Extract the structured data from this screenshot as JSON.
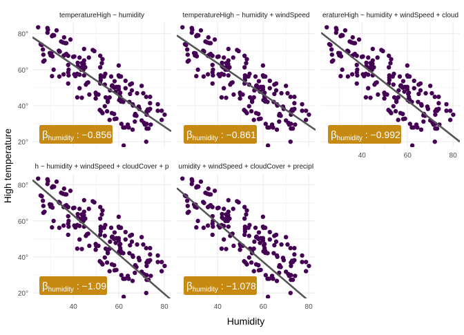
{
  "chart_data": {
    "type": "scatter",
    "layout": "facet grid, 2 rows x 3 columns, 5 panels",
    "xlabel": "Humidity",
    "ylabel": "High temperature",
    "xlim": [
      22,
      83
    ],
    "ylim": [
      17,
      86
    ],
    "x_ticks": [
      "40",
      "60",
      "80"
    ],
    "x_tick_values": [
      40,
      60,
      80
    ],
    "y_ticks": [
      "20°",
      "40°",
      "60°",
      "80°"
    ],
    "y_tick_values": [
      20,
      40,
      60,
      80
    ],
    "grid": true,
    "colors": {
      "points": "#440154",
      "fit_line": "#555555",
      "label_bg": "#C68A12",
      "label_text": "#ffffff",
      "grid": "#ebebeb"
    },
    "label_symbol": "β",
    "label_subscript": "humidity",
    "panels": [
      {
        "title": "temperatureHigh ~ humidity",
        "coef_text": ": −0.856",
        "slope": -0.856,
        "line": [
          [
            22,
            78.0
          ],
          [
            83,
            25.8
          ]
        ]
      },
      {
        "title": "temperatureHigh ~ humidity + windSpeed",
        "coef_text": ": −0.861",
        "slope": -0.861,
        "line": [
          [
            22,
            79.0
          ],
          [
            83,
            26.5
          ]
        ]
      },
      {
        "title": "eratureHigh ~ humidity + windSpeed + cloud",
        "coef_text": ": −0.992",
        "slope": -0.992,
        "line": [
          [
            22,
            80.5
          ],
          [
            83,
            20.0
          ]
        ]
      },
      {
        "title": "h ~ humidity + windSpeed + cloudCover + p",
        "coef_text": ": −1.09",
        "slope": -1.09,
        "line": [
          [
            22,
            82.7
          ],
          [
            83,
            16.2
          ]
        ]
      },
      {
        "title": "umidity + windSpeed + cloudCover + precipI",
        "coef_text": ": −1.078",
        "slope": -1.078,
        "line": [
          [
            22,
            78.2
          ],
          [
            83,
            12.4
          ]
        ]
      }
    ],
    "points": [
      [
        24.5,
        83.5
      ],
      [
        28.6,
        83.1
      ],
      [
        28.8,
        82.1
      ],
      [
        28.6,
        80.5
      ],
      [
        31.0,
        79.2
      ],
      [
        31.5,
        79.0
      ],
      [
        32.6,
        81.8
      ],
      [
        30.6,
        78.6
      ],
      [
        25.6,
        74.1
      ],
      [
        26.1,
        73.7
      ],
      [
        26.6,
        71.2
      ],
      [
        26.8,
        68.3
      ],
      [
        26.8,
        64.5
      ],
      [
        27.3,
        65.1
      ],
      [
        29.6,
        69.2
      ],
      [
        30.0,
        67.9
      ],
      [
        30.8,
        67.4
      ],
      [
        30.3,
        69.0
      ],
      [
        30.6,
        56.4
      ],
      [
        31.3,
        60.0
      ],
      [
        33.6,
        70.5
      ],
      [
        34.0,
        70.0
      ],
      [
        34.6,
        75.6
      ],
      [
        35.4,
        75.1
      ],
      [
        35.9,
        77.9
      ],
      [
        36.4,
        74.7
      ],
      [
        36.9,
        74.7
      ],
      [
        35.7,
        67.7
      ],
      [
        36.4,
        68.3
      ],
      [
        36.9,
        68.7
      ],
      [
        37.7,
        67.7
      ],
      [
        38.7,
        76.7
      ],
      [
        37.7,
        62.6
      ],
      [
        37.9,
        60.0
      ],
      [
        37.7,
        58.5
      ],
      [
        37.9,
        56.8
      ],
      [
        35.7,
        57.4
      ],
      [
        33.8,
        56.2
      ],
      [
        37.7,
        52.3
      ],
      [
        39.9,
        67.1
      ],
      [
        40.4,
        67.3
      ],
      [
        40.4,
        57.4
      ],
      [
        40.9,
        56.4
      ],
      [
        41.7,
        57.7
      ],
      [
        42.7,
        57.2
      ],
      [
        42.7,
        66.7
      ],
      [
        41.9,
        63.8
      ],
      [
        41.9,
        61.9
      ],
      [
        42.4,
        61.3
      ],
      [
        43.4,
        60.0
      ],
      [
        43.7,
        60.6
      ],
      [
        44.1,
        61.9
      ],
      [
        44.6,
        63.2
      ],
      [
        43.7,
        63.6
      ],
      [
        44.7,
        65.1
      ],
      [
        44.7,
        71.5
      ],
      [
        45.2,
        61.3
      ],
      [
        44.4,
        60.0
      ],
      [
        44.7,
        56.8
      ],
      [
        45.5,
        51.7
      ],
      [
        42.7,
        49.7
      ],
      [
        41.7,
        44.6
      ],
      [
        43.7,
        44.4
      ],
      [
        46.0,
        52.6
      ],
      [
        46.8,
        66.7
      ],
      [
        46.5,
        52.9
      ],
      [
        47.0,
        46.2
      ],
      [
        48.5,
        70.9
      ],
      [
        49.2,
        70.3
      ],
      [
        49.8,
        47.2
      ],
      [
        49.8,
        44.0
      ],
      [
        50.0,
        46.2
      ],
      [
        51.0,
        46.2
      ],
      [
        51.8,
        67.7
      ],
      [
        51.8,
        61.3
      ],
      [
        52.0,
        56.8
      ],
      [
        52.0,
        55.5
      ],
      [
        52.0,
        54.2
      ],
      [
        51.8,
        52.3
      ],
      [
        52.5,
        63.6
      ],
      [
        52.8,
        65.8
      ],
      [
        51.6,
        37.6
      ],
      [
        52.2,
        36.9
      ],
      [
        52.8,
        35.9
      ],
      [
        53.5,
        56.2
      ],
      [
        53.8,
        51.7
      ],
      [
        54.0,
        57.7
      ],
      [
        53.8,
        39.7
      ],
      [
        54.2,
        44.6
      ],
      [
        55.1,
        42.1
      ],
      [
        54.8,
        36.9
      ],
      [
        55.1,
        42.7
      ],
      [
        55.9,
        44.6
      ],
      [
        56.1,
        48.5
      ],
      [
        56.6,
        56.2
      ],
      [
        56.9,
        51.0
      ],
      [
        57.1,
        51.3
      ],
      [
        57.9,
        50.0
      ],
      [
        57.6,
        50.4
      ],
      [
        58.1,
        53.6
      ],
      [
        55.9,
        32.1
      ],
      [
        56.9,
        35.9
      ],
      [
        57.9,
        35.4
      ],
      [
        58.1,
        32.6
      ],
      [
        58.9,
        32.8
      ],
      [
        58.6,
        47.8
      ],
      [
        58.9,
        50.4
      ],
      [
        59.9,
        62.3
      ],
      [
        59.9,
        56.8
      ],
      [
        60.1,
        56.2
      ],
      [
        59.9,
        50.4
      ],
      [
        59.9,
        49.1
      ],
      [
        60.9,
        56.2
      ],
      [
        60.6,
        47.2
      ],
      [
        60.3,
        46.5
      ],
      [
        60.9,
        43.3
      ],
      [
        60.1,
        43.1
      ],
      [
        60.9,
        42.3
      ],
      [
        60.6,
        44.9
      ],
      [
        61.9,
        42.1
      ],
      [
        61.1,
        29.9
      ],
      [
        61.9,
        27.9
      ],
      [
        62.1,
        17.9
      ],
      [
        62.9,
        53.8
      ],
      [
        62.9,
        49.7
      ],
      [
        62.6,
        27.9
      ],
      [
        63.9,
        29.5
      ],
      [
        64.3,
        27.9
      ],
      [
        64.9,
        46.5
      ],
      [
        64.6,
        42.1
      ],
      [
        64.9,
        51.7
      ],
      [
        65.7,
        48.5
      ],
      [
        65.7,
        52.3
      ],
      [
        66.0,
        26.7
      ],
      [
        66.0,
        40.8
      ],
      [
        66.2,
        40.1
      ],
      [
        67.0,
        31.2
      ],
      [
        67.2,
        35.4
      ],
      [
        68.0,
        46.9
      ],
      [
        67.0,
        34.6
      ],
      [
        67.7,
        34.4
      ],
      [
        68.7,
        39.5
      ],
      [
        69.0,
        38.2
      ],
      [
        70.0,
        51.0
      ],
      [
        70.0,
        31.8
      ],
      [
        70.7,
        46.9
      ],
      [
        71.0,
        30.5
      ],
      [
        71.4,
        29.5
      ],
      [
        72.0,
        44.9
      ],
      [
        72.2,
        35.0
      ],
      [
        72.2,
        36.9
      ],
      [
        72.0,
        20.0
      ],
      [
        72.2,
        27.3
      ],
      [
        72.7,
        37.9
      ],
      [
        73.0,
        37.2
      ],
      [
        73.7,
        44.9
      ],
      [
        73.7,
        41.4
      ],
      [
        73.7,
        38.2
      ],
      [
        74.0,
        29.5
      ],
      [
        73.0,
        27.3
      ],
      [
        72.2,
        29.9
      ],
      [
        77.1,
        40.8
      ],
      [
        77.1,
        37.2
      ],
      [
        78.8,
        37.2
      ],
      [
        80.1,
        35.0
      ],
      [
        78.8,
        32.1
      ]
    ]
  }
}
